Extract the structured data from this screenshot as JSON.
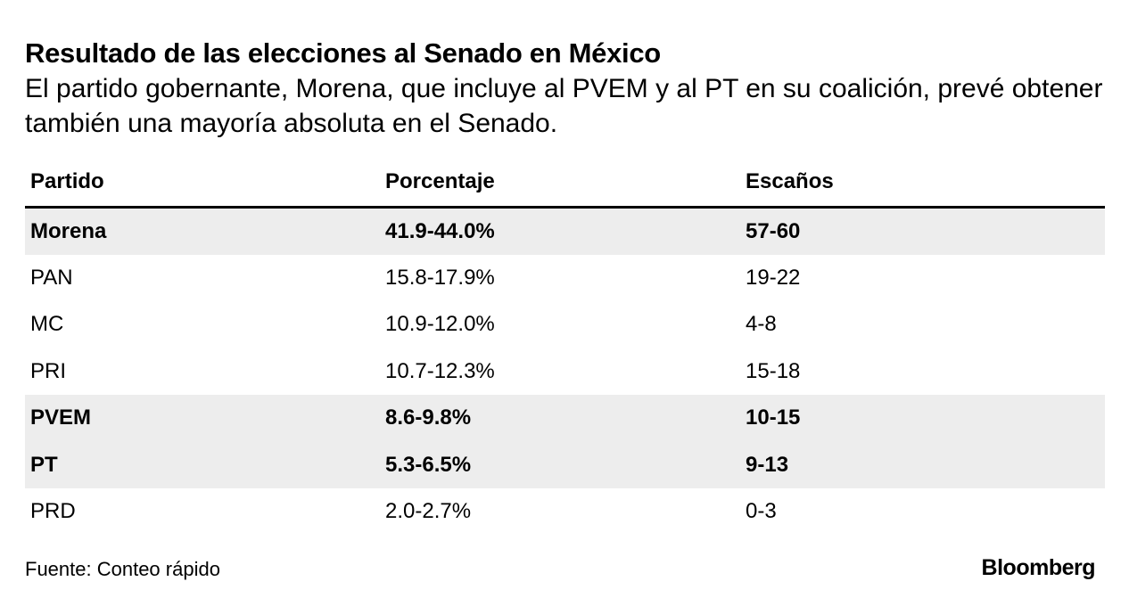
{
  "chart_data": {
    "type": "table",
    "title": "Resultado de las elecciones al Senado en México",
    "subtitle": "El partido gobernante, Morena, que incluye al PVEM y al PT en su coalición, prevé obtener también una mayoría absoluta en el Senado.",
    "columns": [
      "Partido",
      "Porcentaje",
      "Escaños"
    ],
    "rows": [
      {
        "partido": "Morena",
        "porcentaje": "41.9-44.0%",
        "escanos": "57-60",
        "highlight": true
      },
      {
        "partido": "PAN",
        "porcentaje": "15.8-17.9%",
        "escanos": "19-22",
        "highlight": false
      },
      {
        "partido": "MC",
        "porcentaje": "10.9-12.0%",
        "escanos": "4-8",
        "highlight": false
      },
      {
        "partido": "PRI",
        "porcentaje": "10.7-12.3%",
        "escanos": "15-18",
        "highlight": false
      },
      {
        "partido": "PVEM",
        "porcentaje": "8.6-9.8%",
        "escanos": "10-15",
        "highlight": true
      },
      {
        "partido": "PT",
        "porcentaje": "5.3-6.5%",
        "escanos": "9-13",
        "highlight": true
      },
      {
        "partido": "PRD",
        "porcentaje": "2.0-2.7%",
        "escanos": "0-3",
        "highlight": false
      }
    ],
    "source": "Fuente: Conteo rápido",
    "brand": "Bloomberg",
    "highlight_color": "#ededed"
  }
}
